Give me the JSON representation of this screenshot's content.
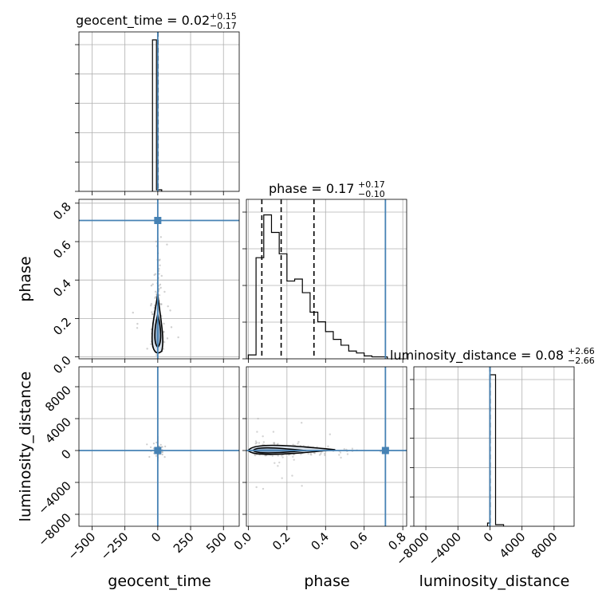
{
  "colors": {
    "injection": "#4682b4",
    "hist": "#000000",
    "grid": "#b0b0b0",
    "points": "#aaaaaa"
  },
  "chart_data": {
    "type": "corner",
    "parameters": [
      "geocent_time",
      "phase",
      "luminosity_distance"
    ],
    "titles": {
      "geocent_time": {
        "prefix": "geocent_time = ",
        "median": "0.02",
        "plus": "+0.15",
        "minus": "−0.17"
      },
      "phase": {
        "prefix": "phase = ",
        "median": "0.17",
        "plus": "+0.17",
        "minus": "−0.10"
      },
      "luminosity_distance": {
        "prefix": "luminosity_distance = ",
        "median": "0.08",
        "plus": "+2.66",
        "minus": "−2.66"
      }
    },
    "injection": {
      "geocent_time": 0,
      "phase": 0.71,
      "luminosity_distance": 0
    },
    "ranges": {
      "geocent_time": [
        -600,
        620
      ],
      "phase": [
        -0.01,
        0.82
      ],
      "luminosity_distance": [
        -9500,
        10500
      ],
      "phase_panel_y": [
        -0.01,
        0.82
      ]
    },
    "ticks": {
      "geocent_time": {
        "values": [
          -500,
          -250,
          0,
          250,
          500
        ],
        "labels": [
          "−500",
          "−250",
          "0",
          "250",
          "500"
        ]
      },
      "phase": {
        "values": [
          0.0,
          0.2,
          0.4,
          0.6,
          0.8
        ],
        "labels": [
          "0.0",
          "0.2",
          "0.4",
          "0.6",
          "0.8"
        ]
      },
      "luminosity_distance": {
        "values": [
          -8000,
          -4000,
          0,
          4000,
          8000
        ],
        "labels": [
          "−8000",
          "−4000",
          "0",
          "4000",
          "8000"
        ]
      }
    },
    "quantiles": {
      "geocent_time": [
        -0.15,
        0.02,
        0.17
      ],
      "phase": [
        0.07,
        0.17,
        0.34
      ],
      "luminosity_distance": [
        -2.58,
        0.08,
        2.74
      ]
    },
    "hist_geocent_time": {
      "edges": [
        -40,
        -10,
        30
      ],
      "counts": [
        0.95,
        0.01
      ]
    },
    "hist_phase": {
      "edges": [
        0.0,
        0.04,
        0.08,
        0.12,
        0.16,
        0.2,
        0.24,
        0.28,
        0.32,
        0.36,
        0.4,
        0.44,
        0.48,
        0.52,
        0.56,
        0.6,
        0.64,
        0.68,
        0.72
      ],
      "counts": [
        0.02,
        0.52,
        0.74,
        0.65,
        0.54,
        0.4,
        0.41,
        0.34,
        0.24,
        0.19,
        0.14,
        0.1,
        0.07,
        0.04,
        0.03,
        0.015,
        0.01,
        0.01
      ]
    },
    "hist_luminosity_distance": {
      "edges": [
        -300,
        -30,
        700,
        1700
      ],
      "counts": [
        0.02,
        0.95,
        0.01
      ]
    },
    "axis_labels": {
      "x": [
        "geocent_time",
        "phase",
        "luminosity_distance"
      ],
      "y": [
        "phase",
        "luminosity_distance"
      ]
    }
  }
}
